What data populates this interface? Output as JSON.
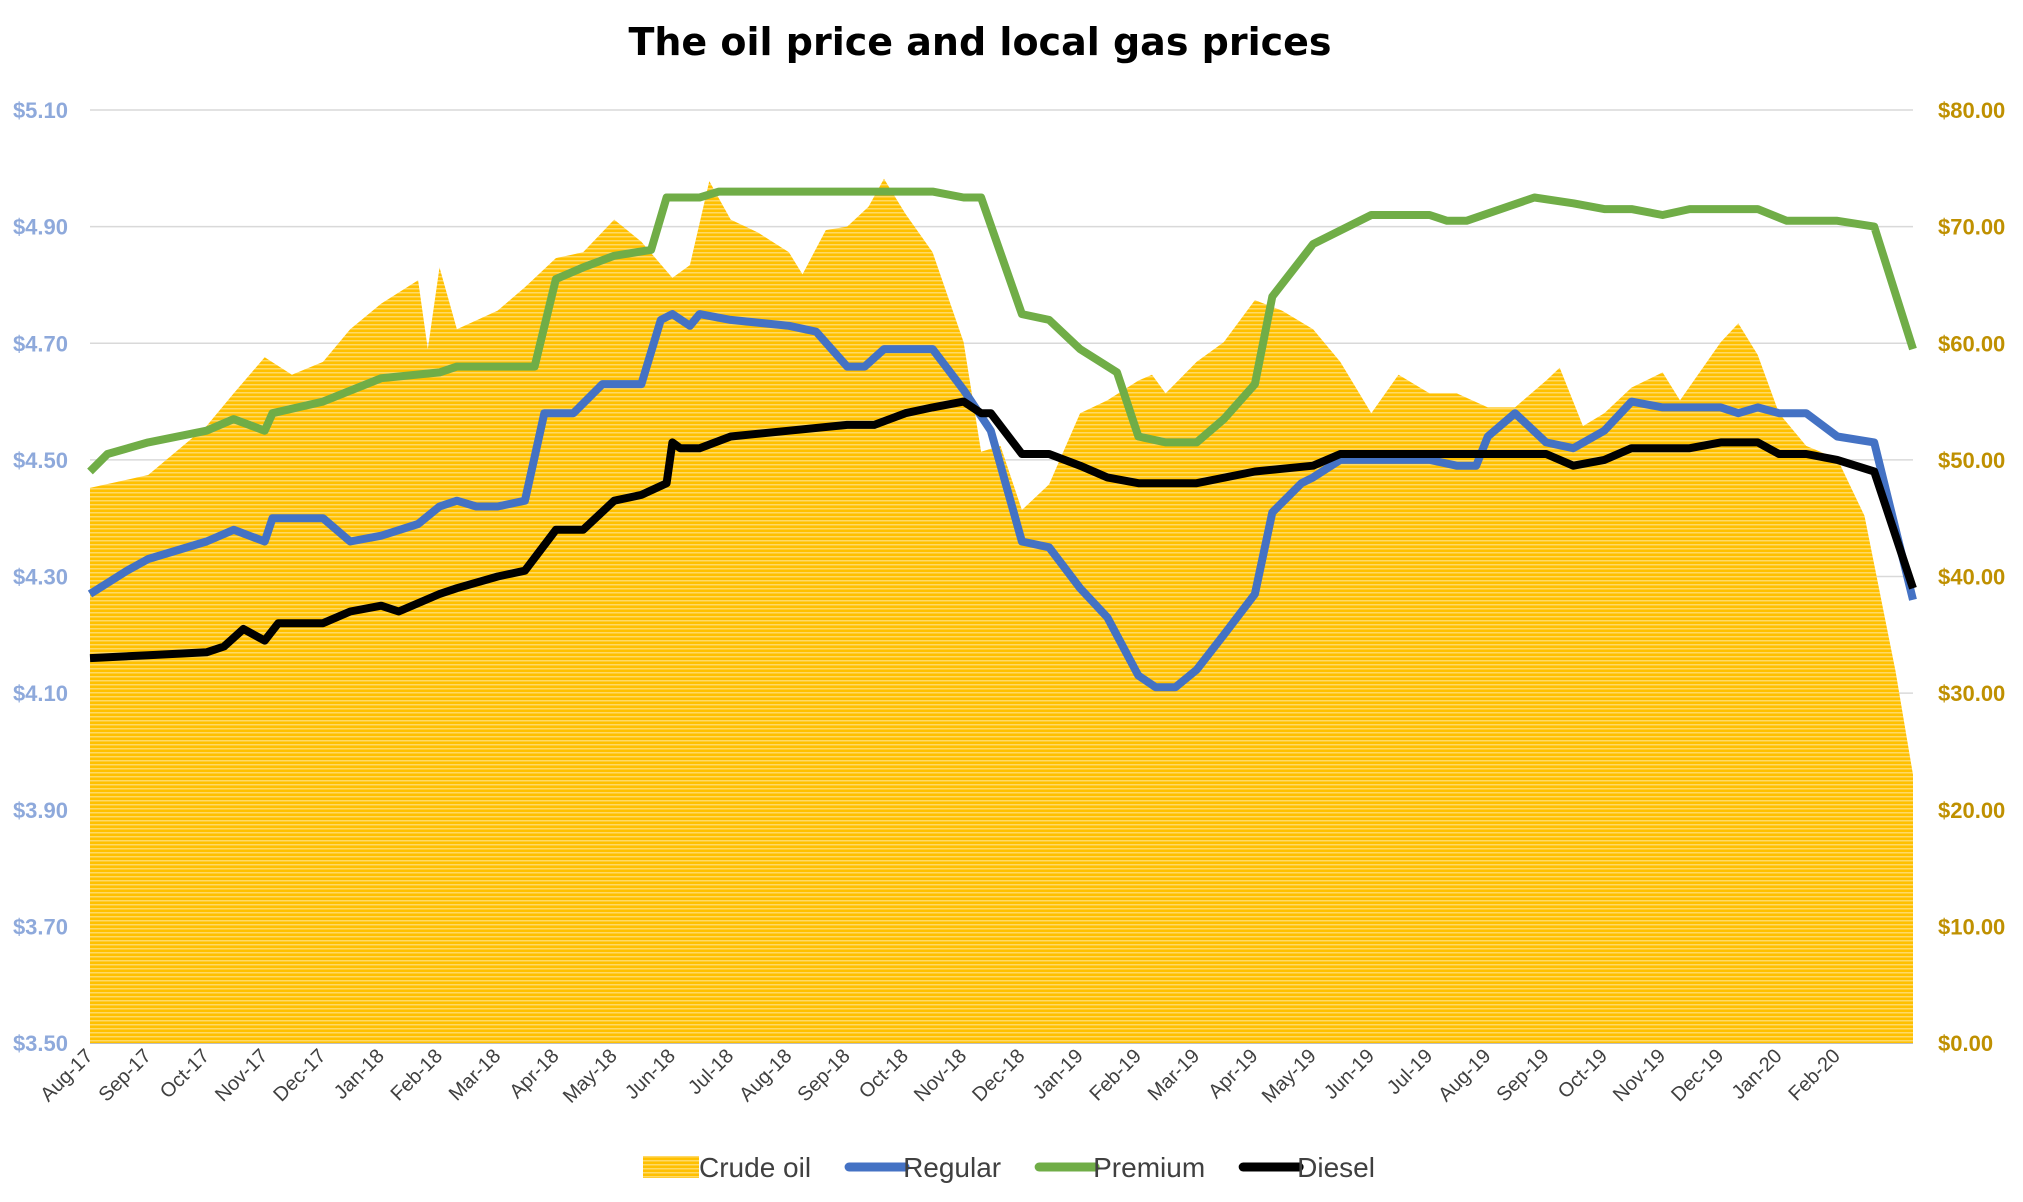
{
  "chart_data": {
    "type": "line",
    "title": "The oil price and local gas prices",
    "xlim": [
      "2017-08-01",
      "2020-03-10"
    ],
    "x_tick_labels": [
      "Aug-17",
      "Sep-17",
      "Oct-17",
      "Nov-17",
      "Dec-17",
      "Jan-18",
      "Feb-18",
      "Mar-18",
      "Apr-18",
      "May-18",
      "Jun-18",
      "Jul-18",
      "Aug-18",
      "Sep-18",
      "Oct-18",
      "Nov-18",
      "Dec-18",
      "Jan-19",
      "Feb-19",
      "Mar-19",
      "Apr-19",
      "May-19",
      "Jun-19",
      "Jul-19",
      "Aug-19",
      "Sep-19",
      "Oct-19",
      "Nov-19",
      "Dec-19",
      "Jan-20",
      "Feb-20"
    ],
    "y_left": {
      "range": [
        3.5,
        5.1
      ],
      "ticks": [
        "$3.50",
        "$3.70",
        "$3.90",
        "$4.10",
        "$4.30",
        "$4.50",
        "$4.70",
        "$4.90",
        "$5.10"
      ],
      "color": "#8EA9DB"
    },
    "y_right": {
      "range": [
        0,
        80
      ],
      "ticks": [
        "$0.00",
        "$10.00",
        "$20.00",
        "$30.00",
        "$40.00",
        "$50.00",
        "$60.00",
        "$70.00",
        "$80.00"
      ],
      "color": "#BF9000"
    },
    "grid": true,
    "legend": "bottom",
    "series": [
      {
        "name": "Crude oil",
        "type": "area",
        "axis": "right",
        "color": "#FFC000",
        "points": [
          [
            "2017-08-01",
            47.6
          ],
          [
            "2017-09-01",
            48.7
          ],
          [
            "2017-10-01",
            52.9
          ],
          [
            "2017-10-15",
            55.7
          ],
          [
            "2017-11-01",
            58.8
          ],
          [
            "2017-11-15",
            57.3
          ],
          [
            "2017-12-01",
            58.4
          ],
          [
            "2017-12-15",
            61.2
          ],
          [
            "2018-01-01",
            63.4
          ],
          [
            "2018-01-20",
            65.4
          ],
          [
            "2018-01-25",
            59.5
          ],
          [
            "2018-02-01",
            66.5
          ],
          [
            "2018-02-10",
            61.2
          ],
          [
            "2018-03-01",
            62.8
          ],
          [
            "2018-03-15",
            64.8
          ],
          [
            "2018-04-01",
            67.3
          ],
          [
            "2018-04-15",
            67.8
          ],
          [
            "2018-05-01",
            70.6
          ],
          [
            "2018-05-15",
            68.7
          ],
          [
            "2018-06-01",
            65.6
          ],
          [
            "2018-06-10",
            66.7
          ],
          [
            "2018-06-20",
            73.9
          ],
          [
            "2018-07-01",
            70.6
          ],
          [
            "2018-07-15",
            69.5
          ],
          [
            "2018-08-01",
            67.8
          ],
          [
            "2018-08-08",
            65.9
          ],
          [
            "2018-08-20",
            69.7
          ],
          [
            "2018-09-01",
            70.0
          ],
          [
            "2018-09-12",
            71.7
          ],
          [
            "2018-09-20",
            74.1
          ],
          [
            "2018-10-01",
            71.1
          ],
          [
            "2018-10-15",
            67.8
          ],
          [
            "2018-11-01",
            60.1
          ],
          [
            "2018-11-10",
            50.7
          ],
          [
            "2018-11-20",
            51.2
          ],
          [
            "2018-12-01",
            45.7
          ],
          [
            "2018-12-15",
            47.9
          ],
          [
            "2019-01-01",
            54.0
          ],
          [
            "2019-01-15",
            55.1
          ],
          [
            "2019-02-01",
            56.8
          ],
          [
            "2019-02-08",
            57.3
          ],
          [
            "2019-02-15",
            55.7
          ],
          [
            "2019-03-01",
            58.4
          ],
          [
            "2019-03-15",
            60.1
          ],
          [
            "2019-04-01",
            63.7
          ],
          [
            "2019-04-15",
            62.8
          ],
          [
            "2019-05-01",
            61.2
          ],
          [
            "2019-05-15",
            58.4
          ],
          [
            "2019-06-01",
            54.0
          ],
          [
            "2019-06-15",
            57.3
          ],
          [
            "2019-07-01",
            55.7
          ],
          [
            "2019-07-15",
            55.7
          ],
          [
            "2019-08-01",
            54.5
          ],
          [
            "2019-08-15",
            54.5
          ],
          [
            "2019-09-01",
            56.8
          ],
          [
            "2019-09-08",
            57.9
          ],
          [
            "2019-09-20",
            52.9
          ],
          [
            "2019-10-01",
            54.0
          ],
          [
            "2019-10-15",
            56.2
          ],
          [
            "2019-11-01",
            57.5
          ],
          [
            "2019-11-10",
            55.1
          ],
          [
            "2019-12-01",
            60.1
          ],
          [
            "2019-12-10",
            61.7
          ],
          [
            "2019-12-20",
            59.0
          ],
          [
            "2020-01-01",
            54.0
          ],
          [
            "2020-01-15",
            51.2
          ],
          [
            "2020-02-01",
            50.1
          ],
          [
            "2020-02-15",
            45.2
          ],
          [
            "2020-03-01",
            31.9
          ],
          [
            "2020-03-10",
            23.0
          ]
        ]
      },
      {
        "name": "Regular",
        "type": "line",
        "axis": "left",
        "color": "#4472C4",
        "points": [
          [
            "2017-08-01",
            4.27
          ],
          [
            "2017-08-20",
            4.31
          ],
          [
            "2017-09-01",
            4.33
          ],
          [
            "2017-10-01",
            4.36
          ],
          [
            "2017-10-15",
            4.38
          ],
          [
            "2017-11-01",
            4.36
          ],
          [
            "2017-11-05",
            4.4
          ],
          [
            "2017-12-01",
            4.4
          ],
          [
            "2017-12-15",
            4.36
          ],
          [
            "2018-01-01",
            4.37
          ],
          [
            "2018-01-20",
            4.39
          ],
          [
            "2018-02-01",
            4.42
          ],
          [
            "2018-02-10",
            4.43
          ],
          [
            "2018-02-20",
            4.42
          ],
          [
            "2018-03-01",
            4.42
          ],
          [
            "2018-03-15",
            4.43
          ],
          [
            "2018-03-25",
            4.58
          ],
          [
            "2018-04-10",
            4.58
          ],
          [
            "2018-04-25",
            4.63
          ],
          [
            "2018-05-15",
            4.63
          ],
          [
            "2018-05-25",
            4.74
          ],
          [
            "2018-06-01",
            4.75
          ],
          [
            "2018-06-10",
            4.73
          ],
          [
            "2018-06-15",
            4.75
          ],
          [
            "2018-07-01",
            4.74
          ],
          [
            "2018-08-01",
            4.73
          ],
          [
            "2018-08-15",
            4.72
          ],
          [
            "2018-09-01",
            4.66
          ],
          [
            "2018-09-10",
            4.66
          ],
          [
            "2018-09-20",
            4.69
          ],
          [
            "2018-10-15",
            4.69
          ],
          [
            "2018-11-01",
            4.62
          ],
          [
            "2018-11-15",
            4.55
          ],
          [
            "2018-12-01",
            4.36
          ],
          [
            "2018-12-15",
            4.35
          ],
          [
            "2019-01-01",
            4.28
          ],
          [
            "2019-01-15",
            4.23
          ],
          [
            "2019-02-01",
            4.13
          ],
          [
            "2019-02-10",
            4.11
          ],
          [
            "2019-02-20",
            4.11
          ],
          [
            "2019-03-01",
            4.14
          ],
          [
            "2019-03-15",
            4.2
          ],
          [
            "2019-04-01",
            4.27
          ],
          [
            "2019-04-10",
            4.41
          ],
          [
            "2019-04-25",
            4.46
          ],
          [
            "2019-05-01",
            4.47
          ],
          [
            "2019-05-15",
            4.5
          ],
          [
            "2019-07-01",
            4.5
          ],
          [
            "2019-07-15",
            4.49
          ],
          [
            "2019-07-25",
            4.49
          ],
          [
            "2019-08-01",
            4.54
          ],
          [
            "2019-08-15",
            4.58
          ],
          [
            "2019-09-01",
            4.53
          ],
          [
            "2019-09-15",
            4.52
          ],
          [
            "2019-10-01",
            4.55
          ],
          [
            "2019-10-15",
            4.6
          ],
          [
            "2019-11-01",
            4.59
          ],
          [
            "2019-12-01",
            4.59
          ],
          [
            "2019-12-10",
            4.58
          ],
          [
            "2019-12-20",
            4.59
          ],
          [
            "2020-01-01",
            4.58
          ],
          [
            "2020-01-15",
            4.58
          ],
          [
            "2020-02-01",
            4.54
          ],
          [
            "2020-02-20",
            4.53
          ],
          [
            "2020-03-10",
            4.26
          ]
        ]
      },
      {
        "name": "Premium",
        "type": "line",
        "axis": "left",
        "color": "#70AD47",
        "points": [
          [
            "2017-08-01",
            4.48
          ],
          [
            "2017-08-10",
            4.51
          ],
          [
            "2017-09-01",
            4.53
          ],
          [
            "2017-10-01",
            4.55
          ],
          [
            "2017-10-15",
            4.57
          ],
          [
            "2017-11-01",
            4.55
          ],
          [
            "2017-11-05",
            4.58
          ],
          [
            "2017-12-01",
            4.6
          ],
          [
            "2018-01-01",
            4.64
          ],
          [
            "2018-02-01",
            4.65
          ],
          [
            "2018-02-10",
            4.66
          ],
          [
            "2018-03-20",
            4.66
          ],
          [
            "2018-04-01",
            4.81
          ],
          [
            "2018-04-15",
            4.83
          ],
          [
            "2018-05-01",
            4.85
          ],
          [
            "2018-05-20",
            4.86
          ],
          [
            "2018-05-28",
            4.95
          ],
          [
            "2018-06-15",
            4.95
          ],
          [
            "2018-06-25",
            4.96
          ],
          [
            "2018-10-15",
            4.96
          ],
          [
            "2018-11-01",
            4.95
          ],
          [
            "2018-11-10",
            4.95
          ],
          [
            "2018-12-01",
            4.75
          ],
          [
            "2018-12-15",
            4.74
          ],
          [
            "2019-01-01",
            4.69
          ],
          [
            "2019-01-20",
            4.65
          ],
          [
            "2019-02-01",
            4.54
          ],
          [
            "2019-02-15",
            4.53
          ],
          [
            "2019-03-01",
            4.53
          ],
          [
            "2019-03-15",
            4.57
          ],
          [
            "2019-04-01",
            4.63
          ],
          [
            "2019-04-10",
            4.78
          ],
          [
            "2019-05-01",
            4.87
          ],
          [
            "2019-06-01",
            4.92
          ],
          [
            "2019-07-01",
            4.92
          ],
          [
            "2019-07-10",
            4.91
          ],
          [
            "2019-07-20",
            4.91
          ],
          [
            "2019-08-25",
            4.95
          ],
          [
            "2019-09-15",
            4.94
          ],
          [
            "2019-10-01",
            4.93
          ],
          [
            "2019-10-15",
            4.93
          ],
          [
            "2019-11-01",
            4.92
          ],
          [
            "2019-11-15",
            4.93
          ],
          [
            "2019-12-20",
            4.93
          ],
          [
            "2020-01-05",
            4.91
          ],
          [
            "2020-02-01",
            4.91
          ],
          [
            "2020-02-20",
            4.9
          ],
          [
            "2020-03-10",
            4.69
          ]
        ]
      },
      {
        "name": "Diesel",
        "type": "line",
        "axis": "left",
        "color": "#000000",
        "points": [
          [
            "2017-08-01",
            4.16
          ],
          [
            "2017-09-01",
            4.165
          ],
          [
            "2017-10-01",
            4.17
          ],
          [
            "2017-10-10",
            4.18
          ],
          [
            "2017-10-20",
            4.21
          ],
          [
            "2017-11-01",
            4.19
          ],
          [
            "2017-11-08",
            4.22
          ],
          [
            "2017-12-01",
            4.22
          ],
          [
            "2017-12-15",
            4.24
          ],
          [
            "2018-01-01",
            4.25
          ],
          [
            "2018-01-10",
            4.24
          ],
          [
            "2018-02-01",
            4.27
          ],
          [
            "2018-02-10",
            4.28
          ],
          [
            "2018-03-01",
            4.3
          ],
          [
            "2018-03-15",
            4.31
          ],
          [
            "2018-04-01",
            4.38
          ],
          [
            "2018-04-15",
            4.38
          ],
          [
            "2018-05-01",
            4.43
          ],
          [
            "2018-05-15",
            4.44
          ],
          [
            "2018-05-28",
            4.46
          ],
          [
            "2018-06-01",
            4.53
          ],
          [
            "2018-06-05",
            4.52
          ],
          [
            "2018-06-15",
            4.52
          ],
          [
            "2018-07-01",
            4.54
          ],
          [
            "2018-08-01",
            4.55
          ],
          [
            "2018-09-01",
            4.56
          ],
          [
            "2018-09-15",
            4.56
          ],
          [
            "2018-10-01",
            4.58
          ],
          [
            "2018-10-15",
            4.59
          ],
          [
            "2018-11-01",
            4.6
          ],
          [
            "2018-11-10",
            4.58
          ],
          [
            "2018-11-15",
            4.58
          ],
          [
            "2018-12-01",
            4.51
          ],
          [
            "2018-12-15",
            4.51
          ],
          [
            "2019-01-01",
            4.49
          ],
          [
            "2019-01-15",
            4.47
          ],
          [
            "2019-02-01",
            4.46
          ],
          [
            "2019-03-01",
            4.46
          ],
          [
            "2019-04-01",
            4.48
          ],
          [
            "2019-05-01",
            4.49
          ],
          [
            "2019-05-15",
            4.51
          ],
          [
            "2019-09-01",
            4.51
          ],
          [
            "2019-09-15",
            4.49
          ],
          [
            "2019-10-01",
            4.5
          ],
          [
            "2019-10-15",
            4.52
          ],
          [
            "2019-11-15",
            4.52
          ],
          [
            "2019-12-01",
            4.53
          ],
          [
            "2019-12-20",
            4.53
          ],
          [
            "2020-01-01",
            4.51
          ],
          [
            "2020-01-15",
            4.51
          ],
          [
            "2020-02-01",
            4.5
          ],
          [
            "2020-02-20",
            4.48
          ],
          [
            "2020-03-10",
            4.28
          ]
        ]
      }
    ]
  }
}
